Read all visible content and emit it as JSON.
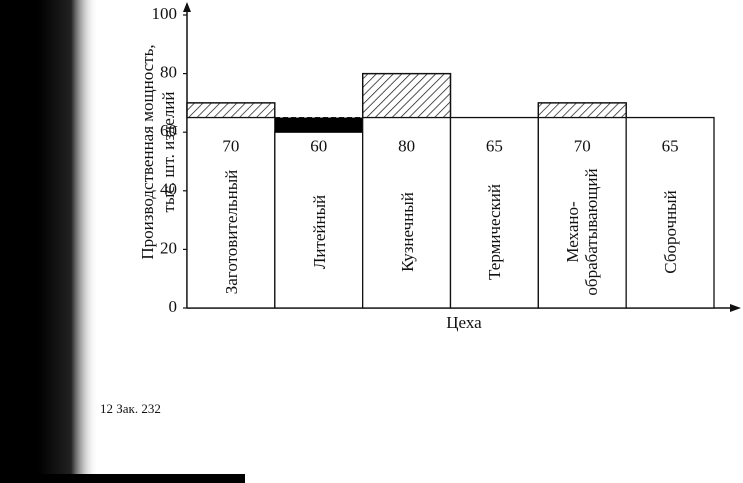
{
  "chart_data": {
    "type": "bar",
    "y_label": "Производственная мощность,\nтыс. шт. изделий",
    "x_label": "Цеха",
    "categories": [
      "Заготовительный",
      "Литейный",
      "Кузнечный",
      "Термический",
      "Механо-\nобрабатывающий",
      "Сборочный"
    ],
    "values": [
      70,
      60,
      80,
      65,
      70,
      65
    ],
    "reference_value": 65,
    "ylim": [
      0,
      100
    ],
    "yticks": [
      0,
      20,
      40,
      60,
      80,
      100
    ],
    "color": "#ffffff"
  },
  "footer": "12 Зак. 232"
}
